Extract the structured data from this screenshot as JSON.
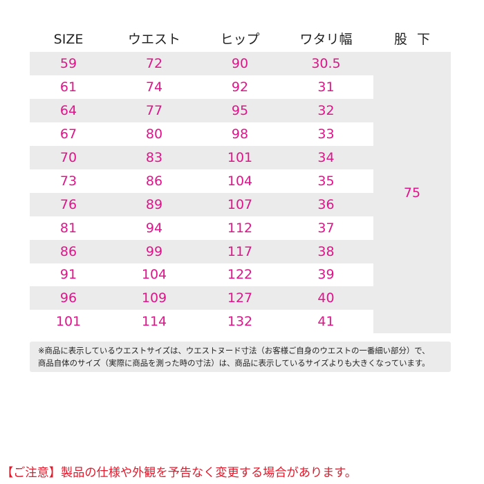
{
  "table": {
    "headers": [
      "SIZE",
      "ウエスト",
      "ヒップ",
      "ワタリ幅"
    ],
    "inseam_header": "股下",
    "inseam_value": "75",
    "rows": [
      [
        "59",
        "72",
        "90",
        "30.5"
      ],
      [
        "61",
        "74",
        "92",
        "31"
      ],
      [
        "64",
        "77",
        "95",
        "32"
      ],
      [
        "67",
        "80",
        "98",
        "33"
      ],
      [
        "70",
        "83",
        "101",
        "34"
      ],
      [
        "73",
        "86",
        "104",
        "35"
      ],
      [
        "76",
        "89",
        "107",
        "36"
      ],
      [
        "81",
        "94",
        "112",
        "37"
      ],
      [
        "86",
        "99",
        "117",
        "38"
      ],
      [
        "91",
        "104",
        "122",
        "39"
      ],
      [
        "96",
        "109",
        "127",
        "40"
      ],
      [
        "101",
        "114",
        "132",
        "41"
      ]
    ]
  },
  "note": {
    "line1": "※商品に表示しているウエストサイズは、ウエストヌード寸法（お客様ご自身のウエストの一番細い部分）で、",
    "line2": "商品自体のサイズ（実際に商品を測った時の寸法）は、商品に表示しているサイズよりも大きくなっています。"
  },
  "caution": "【ご注意】製品の仕様や外観を予告なく変更する場合があります。",
  "colors": {
    "value_text": "#e0148a",
    "header_text": "#222222",
    "stripe": "#ebebeb",
    "caution_text": "#e21a2c"
  }
}
